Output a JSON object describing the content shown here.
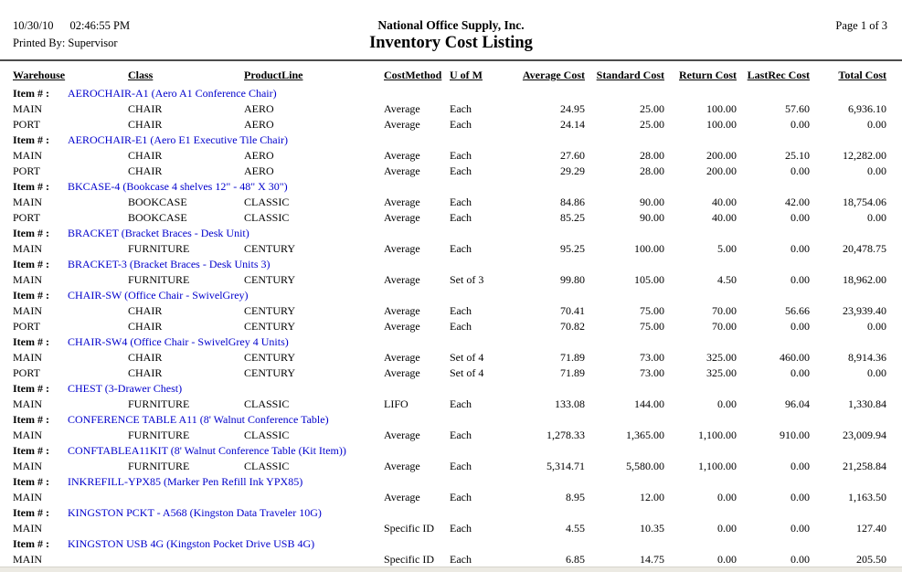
{
  "header": {
    "date": "10/30/10",
    "time": "02:46:55 PM",
    "printed_by": "Printed By: Supervisor",
    "company": "National Office Supply, Inc.",
    "title": "Inventory Cost Listing",
    "page": "Page 1 of 3"
  },
  "colors": {
    "item_link_blue": "#0000CC",
    "rule_gray": "#4c4c4c"
  },
  "table": {
    "item_label": "Item # :",
    "columns": [
      "Warehouse",
      "Class",
      "ProductLine",
      "CostMethod",
      "U of M",
      "Average Cost",
      "Standard Cost",
      "Return Cost",
      "LastRec Cost",
      "Total Cost"
    ],
    "items": [
      {
        "item": "AEROCHAIR-A1 (Aero A1 Conference Chair)",
        "rows": [
          [
            "MAIN",
            "CHAIR",
            "AERO",
            "Average",
            "Each",
            "24.95",
            "25.00",
            "100.00",
            "57.60",
            "6,936.10"
          ],
          [
            "PORT",
            "CHAIR",
            "AERO",
            "Average",
            "Each",
            "24.14",
            "25.00",
            "100.00",
            "0.00",
            "0.00"
          ]
        ]
      },
      {
        "item": "AEROCHAIR-E1 (Aero E1 Executive Tile Chair)",
        "rows": [
          [
            "MAIN",
            "CHAIR",
            "AERO",
            "Average",
            "Each",
            "27.60",
            "28.00",
            "200.00",
            "25.10",
            "12,282.00"
          ],
          [
            "PORT",
            "CHAIR",
            "AERO",
            "Average",
            "Each",
            "29.29",
            "28.00",
            "200.00",
            "0.00",
            "0.00"
          ]
        ]
      },
      {
        "item": "BKCASE-4 (Bookcase 4 shelves 12\" - 48\" X 30\")",
        "rows": [
          [
            "MAIN",
            "BOOKCASE",
            "CLASSIC",
            "Average",
            "Each",
            "84.86",
            "90.00",
            "40.00",
            "42.00",
            "18,754.06"
          ],
          [
            "PORT",
            "BOOKCASE",
            "CLASSIC",
            "Average",
            "Each",
            "85.25",
            "90.00",
            "40.00",
            "0.00",
            "0.00"
          ]
        ]
      },
      {
        "item": "BRACKET (Bracket Braces - Desk Unit)",
        "rows": [
          [
            "MAIN",
            "FURNITURE",
            "CENTURY",
            "Average",
            "Each",
            "95.25",
            "100.00",
            "5.00",
            "0.00",
            "20,478.75"
          ]
        ]
      },
      {
        "item": "BRACKET-3 (Bracket Braces - Desk Units 3)",
        "rows": [
          [
            "MAIN",
            "FURNITURE",
            "CENTURY",
            "Average",
            "Set of 3",
            "99.80",
            "105.00",
            "4.50",
            "0.00",
            "18,962.00"
          ]
        ]
      },
      {
        "item": "CHAIR-SW (Office Chair - SwivelGrey)",
        "rows": [
          [
            "MAIN",
            "CHAIR",
            "CENTURY",
            "Average",
            "Each",
            "70.41",
            "75.00",
            "70.00",
            "56.66",
            "23,939.40"
          ],
          [
            "PORT",
            "CHAIR",
            "CENTURY",
            "Average",
            "Each",
            "70.82",
            "75.00",
            "70.00",
            "0.00",
            "0.00"
          ]
        ]
      },
      {
        "item": "CHAIR-SW4 (Office Chair - SwivelGrey 4 Units)",
        "rows": [
          [
            "MAIN",
            "CHAIR",
            "CENTURY",
            "Average",
            "Set of 4",
            "71.89",
            "73.00",
            "325.00",
            "460.00",
            "8,914.36"
          ],
          [
            "PORT",
            "CHAIR",
            "CENTURY",
            "Average",
            "Set of 4",
            "71.89",
            "73.00",
            "325.00",
            "0.00",
            "0.00"
          ]
        ]
      },
      {
        "item": "CHEST (3-Drawer Chest)",
        "rows": [
          [
            "MAIN",
            "FURNITURE",
            "CLASSIC",
            "LIFO",
            "Each",
            "133.08",
            "144.00",
            "0.00",
            "96.04",
            "1,330.84"
          ]
        ]
      },
      {
        "item": "CONFERENCE TABLE A11 (8' Walnut Conference Table)",
        "rows": [
          [
            "MAIN",
            "FURNITURE",
            "CLASSIC",
            "Average",
            "Each",
            "1,278.33",
            "1,365.00",
            "1,100.00",
            "910.00",
            "23,009.94"
          ]
        ]
      },
      {
        "item": "CONFTABLEA11KIT (8' Walnut Conference Table (Kit Item))",
        "rows": [
          [
            "MAIN",
            "FURNITURE",
            "CLASSIC",
            "Average",
            "Each",
            "5,314.71",
            "5,580.00",
            "1,100.00",
            "0.00",
            "21,258.84"
          ]
        ]
      },
      {
        "item": "INKREFILL-YPX85 (Marker Pen Refill Ink YPX85)",
        "rows": [
          [
            "MAIN",
            "",
            "",
            "Average",
            "Each",
            "8.95",
            "12.00",
            "0.00",
            "0.00",
            "1,163.50"
          ]
        ]
      },
      {
        "item": "KINGSTON PCKT - A568 (Kingston Data Traveler 10G)",
        "rows": [
          [
            "MAIN",
            "",
            "",
            "Specific ID",
            "Each",
            "4.55",
            "10.35",
            "0.00",
            "0.00",
            "127.40"
          ]
        ]
      },
      {
        "item": "KINGSTON USB 4G (Kingston Pocket Drive USB 4G)",
        "rows": [
          [
            "MAIN",
            "",
            "",
            "Specific ID",
            "Each",
            "6.85",
            "14.75",
            "0.00",
            "0.00",
            "205.50"
          ]
        ]
      }
    ]
  }
}
